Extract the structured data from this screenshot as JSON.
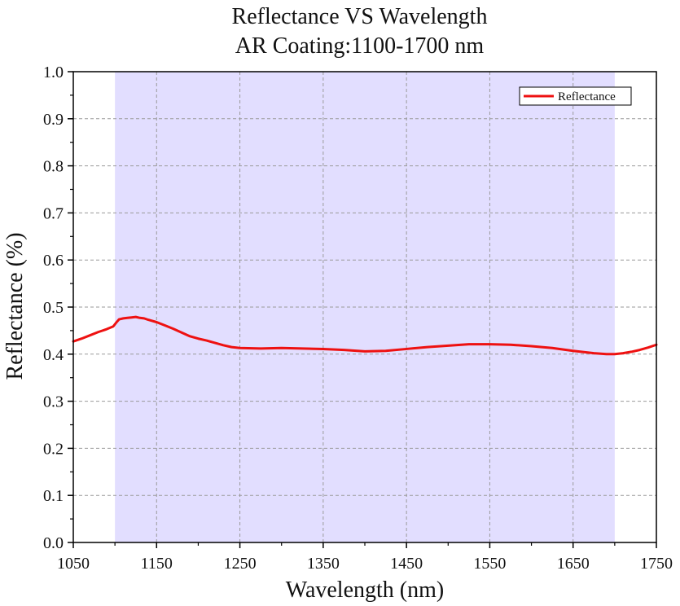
{
  "chart_data": {
    "type": "line",
    "title": "Reflectance VS Wavelength",
    "subtitle": "AR Coating:1100-1700 nm",
    "xlabel": "Wavelength (nm)",
    "ylabel": "Reflectance (%)",
    "xlim": [
      1050,
      1750
    ],
    "ylim": [
      0.0,
      1.0
    ],
    "x_ticks": [
      1050,
      1150,
      1250,
      1350,
      1450,
      1550,
      1650,
      1750
    ],
    "y_ticks": [
      "0.0",
      "0.1",
      "0.2",
      "0.3",
      "0.4",
      "0.5",
      "0.6",
      "0.7",
      "0.8",
      "0.9",
      "1.0"
    ],
    "grid": true,
    "legend_position": "top-right",
    "highlight_band": {
      "x_start": 1100,
      "x_end": 1700,
      "color": "#e2deff"
    },
    "series": [
      {
        "name": "Reflectance",
        "color": "#ee1111",
        "x": [
          1050,
          1060,
          1070,
          1080,
          1090,
          1098,
          1102,
          1105,
          1110,
          1115,
          1120,
          1125,
          1130,
          1135,
          1140,
          1150,
          1160,
          1170,
          1180,
          1190,
          1200,
          1210,
          1220,
          1230,
          1240,
          1250,
          1275,
          1300,
          1325,
          1350,
          1375,
          1400,
          1425,
          1450,
          1475,
          1500,
          1525,
          1550,
          1575,
          1600,
          1625,
          1650,
          1675,
          1690,
          1700,
          1710,
          1720,
          1730,
          1740,
          1750
        ],
        "y": [
          0.427,
          0.433,
          0.44,
          0.447,
          0.453,
          0.459,
          0.468,
          0.474,
          0.476,
          0.477,
          0.478,
          0.479,
          0.477,
          0.476,
          0.473,
          0.468,
          0.461,
          0.454,
          0.446,
          0.438,
          0.433,
          0.429,
          0.424,
          0.419,
          0.415,
          0.413,
          0.412,
          0.413,
          0.412,
          0.411,
          0.409,
          0.406,
          0.407,
          0.411,
          0.415,
          0.418,
          0.421,
          0.421,
          0.42,
          0.417,
          0.413,
          0.407,
          0.402,
          0.4,
          0.4,
          0.402,
          0.405,
          0.409,
          0.414,
          0.42
        ]
      }
    ]
  }
}
